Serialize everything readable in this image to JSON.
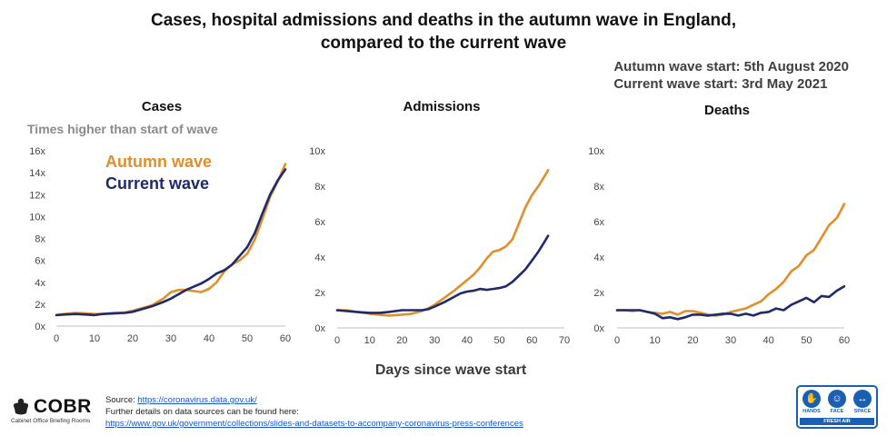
{
  "title_line1": "Cases, hospital admissions and deaths in the autumn wave in England,",
  "title_line2": "compared to the current wave",
  "autumn_start": "Autumn wave start: 5th August 2020",
  "current_start": "Current wave start: 3rd May 2021",
  "y_axis_label": "Times higher than start of wave",
  "x_axis_label": "Days since wave start",
  "legend": {
    "autumn": "Autumn wave",
    "current": "Current wave"
  },
  "colors": {
    "autumn": "#e08f2a",
    "current": "#1f2a6b",
    "axis": "#bfbfbf"
  },
  "footer": {
    "source_prefix": "Source: ",
    "source_link": "https://coronavirus.data.gov.uk/",
    "details_text": "Further details on data sources can be found here:",
    "details_link": "https://www.gov.uk/government/collections/slides-and-datasets-to-accompany-coronavirus-press-conferences"
  },
  "cobr": {
    "name": "COBR",
    "subtitle": "Cabinet Office Briefing Rooms"
  },
  "hands_face_space": {
    "hands": "HANDS",
    "face": "FACE",
    "space": "SPACE",
    "fresh_air": "FRESH AIR"
  },
  "chart_data": [
    {
      "type": "line",
      "title": "Cases",
      "ylim": [
        0,
        16
      ],
      "yticks": [
        0,
        2,
        4,
        6,
        8,
        10,
        12,
        14,
        16
      ],
      "ytick_labels": [
        "0x",
        "2x",
        "4x",
        "6x",
        "8x",
        "10x",
        "12x",
        "14x",
        "16x"
      ],
      "xlim": [
        0,
        60
      ],
      "xticks": [
        0,
        10,
        20,
        30,
        40,
        50,
        60
      ],
      "ytick_suffix": "x",
      "series": [
        {
          "name": "Autumn wave",
          "x": [
            0,
            2,
            5,
            8,
            10,
            12,
            15,
            18,
            20,
            22,
            25,
            28,
            30,
            32,
            34,
            36,
            38,
            40,
            42,
            44,
            46,
            48,
            50,
            52,
            54,
            56,
            58,
            60
          ],
          "y": [
            1.0,
            1.1,
            1.2,
            1.15,
            1.1,
            1.1,
            1.2,
            1.25,
            1.4,
            1.6,
            1.9,
            2.5,
            3.1,
            3.3,
            3.3,
            3.2,
            3.1,
            3.4,
            4.0,
            5.0,
            5.6,
            6.0,
            6.6,
            7.9,
            9.8,
            11.8,
            13.2,
            14.8
          ]
        },
        {
          "name": "Current wave",
          "x": [
            0,
            2,
            5,
            8,
            10,
            12,
            15,
            18,
            20,
            22,
            25,
            28,
            30,
            32,
            34,
            36,
            38,
            40,
            42,
            44,
            46,
            48,
            50,
            52,
            54,
            56,
            58,
            60
          ],
          "y": [
            1.0,
            1.05,
            1.1,
            1.05,
            1.0,
            1.1,
            1.15,
            1.2,
            1.3,
            1.5,
            1.8,
            2.2,
            2.5,
            2.9,
            3.3,
            3.6,
            3.9,
            4.3,
            4.8,
            5.1,
            5.6,
            6.4,
            7.2,
            8.5,
            10.3,
            12.0,
            13.3,
            14.3
          ]
        }
      ]
    },
    {
      "type": "line",
      "title": "Admissions",
      "ylim": [
        0,
        10
      ],
      "yticks": [
        0,
        2,
        4,
        6,
        8,
        10
      ],
      "ytick_labels": [
        "0x",
        "2x",
        "4x",
        "6x",
        "8x",
        "10x"
      ],
      "xlim": [
        0,
        70
      ],
      "xticks": [
        0,
        10,
        20,
        30,
        40,
        50,
        60,
        70
      ],
      "series": [
        {
          "name": "Autumn wave",
          "x": [
            0,
            3,
            6,
            10,
            13,
            16,
            20,
            23,
            26,
            28,
            30,
            33,
            36,
            38,
            40,
            42,
            44,
            46,
            48,
            50,
            52,
            54,
            56,
            58,
            60,
            62,
            64,
            65
          ],
          "y": [
            1.0,
            1.0,
            0.9,
            0.8,
            0.75,
            0.7,
            0.75,
            0.8,
            0.95,
            1.1,
            1.3,
            1.7,
            2.1,
            2.4,
            2.7,
            3.0,
            3.4,
            3.9,
            4.3,
            4.4,
            4.6,
            5.0,
            5.9,
            6.8,
            7.5,
            8.0,
            8.6,
            8.9
          ]
        },
        {
          "name": "Current wave",
          "x": [
            0,
            3,
            6,
            10,
            13,
            16,
            20,
            23,
            26,
            28,
            30,
            33,
            36,
            38,
            40,
            42,
            44,
            46,
            48,
            50,
            52,
            54,
            56,
            58,
            60,
            62,
            64,
            65
          ],
          "y": [
            1.0,
            0.95,
            0.9,
            0.85,
            0.85,
            0.9,
            1.0,
            1.0,
            1.0,
            1.05,
            1.2,
            1.45,
            1.75,
            1.95,
            2.05,
            2.1,
            2.2,
            2.15,
            2.2,
            2.25,
            2.35,
            2.6,
            2.95,
            3.3,
            3.8,
            4.3,
            4.9,
            5.2
          ]
        }
      ]
    },
    {
      "type": "line",
      "title": "Deaths",
      "ylim": [
        0,
        10
      ],
      "yticks": [
        0,
        2,
        4,
        6,
        8,
        10
      ],
      "ytick_labels": [
        "0x",
        "2x",
        "4x",
        "6x",
        "8x",
        "10x"
      ],
      "xlim": [
        0,
        60
      ],
      "xticks": [
        0,
        10,
        20,
        30,
        40,
        50,
        60
      ],
      "series": [
        {
          "name": "Autumn wave",
          "x": [
            0,
            2,
            4,
            6,
            8,
            10,
            12,
            14,
            16,
            18,
            20,
            22,
            24,
            26,
            28,
            30,
            32,
            34,
            36,
            38,
            40,
            42,
            44,
            46,
            48,
            50,
            52,
            54,
            56,
            58,
            60
          ],
          "y": [
            1.0,
            1.0,
            0.95,
            1.0,
            0.9,
            0.85,
            0.8,
            0.9,
            0.75,
            0.95,
            0.95,
            0.85,
            0.75,
            0.7,
            0.75,
            0.9,
            1.0,
            1.1,
            1.3,
            1.5,
            1.9,
            2.2,
            2.6,
            3.2,
            3.5,
            4.1,
            4.4,
            5.1,
            5.8,
            6.2,
            7.0
          ]
        },
        {
          "name": "Current wave",
          "x": [
            0,
            2,
            4,
            6,
            8,
            10,
            12,
            14,
            16,
            18,
            20,
            22,
            24,
            26,
            28,
            30,
            32,
            34,
            36,
            38,
            40,
            42,
            44,
            46,
            48,
            50,
            52,
            54,
            56,
            58,
            60
          ],
          "y": [
            1.0,
            1.0,
            1.0,
            1.0,
            0.9,
            0.8,
            0.55,
            0.6,
            0.5,
            0.6,
            0.75,
            0.75,
            0.7,
            0.75,
            0.8,
            0.8,
            0.7,
            0.8,
            0.7,
            0.85,
            0.9,
            1.1,
            1.0,
            1.3,
            1.5,
            1.7,
            1.45,
            1.8,
            1.75,
            2.1,
            2.35
          ]
        }
      ]
    }
  ]
}
